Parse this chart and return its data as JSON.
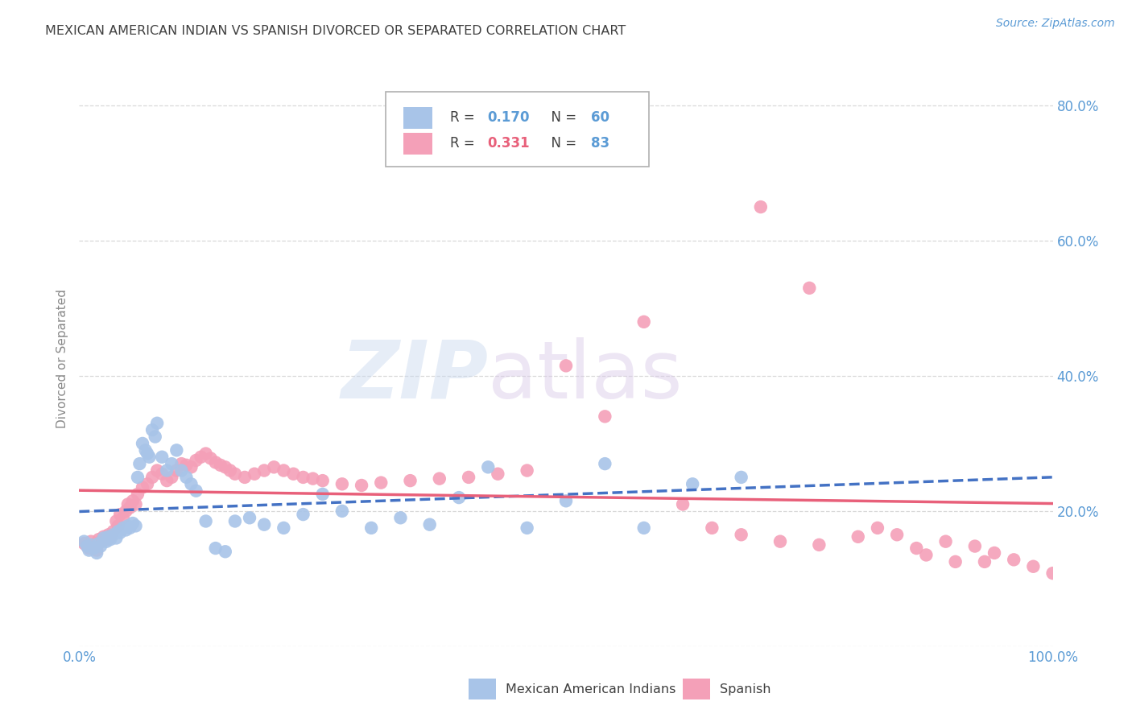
{
  "title": "MEXICAN AMERICAN INDIAN VS SPANISH DIVORCED OR SEPARATED CORRELATION CHART",
  "source": "Source: ZipAtlas.com",
  "ylabel": "Divorced or Separated",
  "series1_label": "Mexican American Indians",
  "series2_label": "Spanish",
  "series1_R": 0.17,
  "series1_N": 60,
  "series2_R": 0.331,
  "series2_N": 83,
  "series1_color": "#a8c4e8",
  "series2_color": "#f4a0b8",
  "series1_line_color": "#4472c4",
  "series2_line_color": "#e8607a",
  "title_color": "#404040",
  "axis_label_color": "#5b9bd5",
  "grid_color": "#d8d8d8",
  "xlim": [
    0.0,
    1.0
  ],
  "ylim": [
    0.0,
    0.85
  ],
  "yticks": [
    0.0,
    0.2,
    0.4,
    0.6,
    0.8
  ],
  "ytick_labels": [
    "",
    "20.0%",
    "40.0%",
    "60.0%",
    "80.0%"
  ],
  "xticks": [
    0.0,
    0.2,
    0.4,
    0.6,
    0.8,
    1.0
  ],
  "xtick_labels": [
    "0.0%",
    "",
    "",
    "",
    "",
    "100.0%"
  ],
  "series1_x": [
    0.005,
    0.008,
    0.01,
    0.012,
    0.015,
    0.018,
    0.02,
    0.022,
    0.025,
    0.028,
    0.03,
    0.032,
    0.035,
    0.038,
    0.04,
    0.042,
    0.045,
    0.048,
    0.05,
    0.052,
    0.055,
    0.058,
    0.06,
    0.062,
    0.065,
    0.068,
    0.07,
    0.072,
    0.075,
    0.078,
    0.08,
    0.085,
    0.09,
    0.095,
    0.1,
    0.105,
    0.11,
    0.115,
    0.12,
    0.13,
    0.14,
    0.15,
    0.16,
    0.175,
    0.19,
    0.21,
    0.23,
    0.25,
    0.27,
    0.3,
    0.33,
    0.36,
    0.39,
    0.42,
    0.46,
    0.5,
    0.54,
    0.58,
    0.63,
    0.68
  ],
  "series1_y": [
    0.155,
    0.148,
    0.142,
    0.15,
    0.145,
    0.138,
    0.152,
    0.148,
    0.16,
    0.155,
    0.162,
    0.158,
    0.165,
    0.16,
    0.17,
    0.168,
    0.175,
    0.172,
    0.178,
    0.175,
    0.182,
    0.178,
    0.25,
    0.27,
    0.3,
    0.29,
    0.285,
    0.28,
    0.32,
    0.31,
    0.33,
    0.28,
    0.26,
    0.27,
    0.29,
    0.26,
    0.25,
    0.24,
    0.23,
    0.185,
    0.145,
    0.14,
    0.185,
    0.19,
    0.18,
    0.175,
    0.195,
    0.225,
    0.2,
    0.175,
    0.19,
    0.18,
    0.22,
    0.265,
    0.175,
    0.215,
    0.27,
    0.175,
    0.24,
    0.25
  ],
  "series2_x": [
    0.005,
    0.008,
    0.01,
    0.012,
    0.015,
    0.018,
    0.02,
    0.022,
    0.025,
    0.028,
    0.03,
    0.032,
    0.035,
    0.038,
    0.04,
    0.042,
    0.045,
    0.048,
    0.05,
    0.052,
    0.055,
    0.058,
    0.06,
    0.065,
    0.07,
    0.075,
    0.08,
    0.085,
    0.09,
    0.095,
    0.1,
    0.105,
    0.11,
    0.115,
    0.12,
    0.125,
    0.13,
    0.135,
    0.14,
    0.145,
    0.15,
    0.155,
    0.16,
    0.17,
    0.18,
    0.19,
    0.2,
    0.21,
    0.22,
    0.23,
    0.24,
    0.25,
    0.27,
    0.29,
    0.31,
    0.34,
    0.37,
    0.4,
    0.43,
    0.46,
    0.5,
    0.54,
    0.58,
    0.62,
    0.65,
    0.68,
    0.72,
    0.76,
    0.8,
    0.84,
    0.7,
    0.75,
    0.82,
    0.86,
    0.9,
    0.92,
    0.94,
    0.96,
    0.98,
    1.0,
    0.87,
    0.89,
    0.93
  ],
  "series2_y": [
    0.152,
    0.148,
    0.145,
    0.155,
    0.15,
    0.142,
    0.158,
    0.155,
    0.162,
    0.158,
    0.165,
    0.162,
    0.17,
    0.185,
    0.178,
    0.195,
    0.19,
    0.2,
    0.21,
    0.205,
    0.215,
    0.21,
    0.225,
    0.235,
    0.24,
    0.25,
    0.26,
    0.255,
    0.245,
    0.25,
    0.26,
    0.27,
    0.268,
    0.265,
    0.275,
    0.28,
    0.285,
    0.278,
    0.272,
    0.268,
    0.265,
    0.26,
    0.255,
    0.25,
    0.255,
    0.26,
    0.265,
    0.26,
    0.255,
    0.25,
    0.248,
    0.245,
    0.24,
    0.238,
    0.242,
    0.245,
    0.248,
    0.25,
    0.255,
    0.26,
    0.415,
    0.34,
    0.48,
    0.21,
    0.175,
    0.165,
    0.155,
    0.15,
    0.162,
    0.165,
    0.65,
    0.53,
    0.175,
    0.145,
    0.125,
    0.148,
    0.138,
    0.128,
    0.118,
    0.108,
    0.135,
    0.155,
    0.125
  ]
}
